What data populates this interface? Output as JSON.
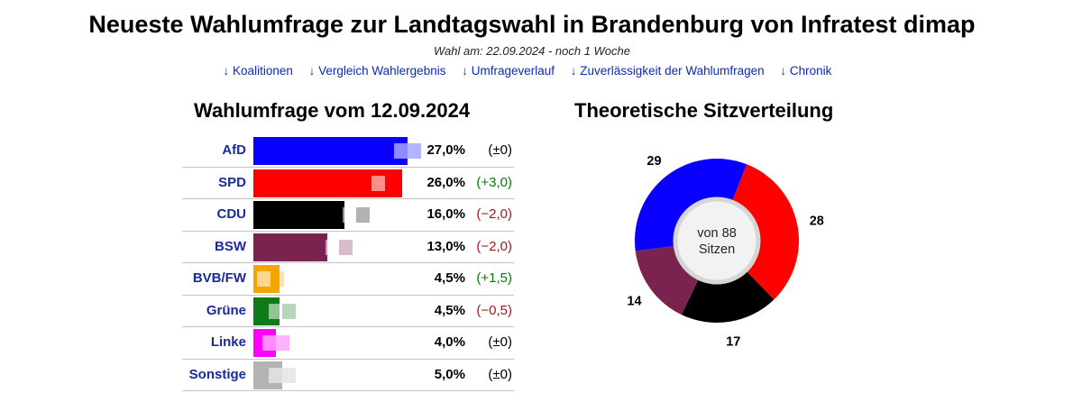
{
  "header": {
    "title": "Neueste Wahlumfrage zur Landtagswahl in Brandenburg von Infratest dimap",
    "subtitle": "Wahl am: 22.09.2024 - noch 1 Woche",
    "links": [
      "↓ Koalitionen",
      "↓ Vergleich Wahlergebnis",
      "↓ Umfrageverlauf",
      "↓ Zuverlässigkeit der Wahlumfragen",
      "↓ Chronik"
    ]
  },
  "poll_title": "Wahlumfrage vom 12.09.2024",
  "seats_title": "Theoretische Sitzverteilung",
  "seats_center": [
    "von 88",
    "Sitzen"
  ],
  "colors": {
    "AfD": "#0a00ff",
    "SPD": "#ff0000",
    "CDU": "#000000",
    "BSW": "#7a2250",
    "BVB/FW": "#f5a500",
    "Grüne": "#0f7a1a",
    "Linke": "#ff00ff",
    "Sonstige": "#b3b3b3"
  },
  "chart_data": [
    {
      "type": "bar",
      "orientation": "horizontal",
      "title": "Wahlumfrage vom 12.09.2024",
      "categories": [
        "AfD",
        "SPD",
        "CDU",
        "BSW",
        "BVB/FW",
        "Grüne",
        "Linke",
        "Sonstige"
      ],
      "values": [
        27.0,
        26.0,
        16.0,
        13.0,
        4.5,
        4.5,
        4.0,
        5.0
      ],
      "previous_values": [
        27.0,
        23.0,
        18.0,
        15.0,
        3.0,
        5.0,
        4.0,
        5.0
      ],
      "value_labels": [
        "27,0%",
        "26,0%",
        "16,0%",
        "13,0%",
        "4,5%",
        "4,5%",
        "4,0%",
        "5,0%"
      ],
      "change_labels": [
        "(±0)",
        "(+3,0)",
        "(−2,0)",
        "(−2,0)",
        "(+1,5)",
        "(−0,5)",
        "(±0)",
        "(±0)"
      ],
      "xlim": [
        0,
        30
      ]
    },
    {
      "type": "pie",
      "title": "Theoretische Sitzverteilung",
      "labels": [
        "AfD",
        "SPD",
        "CDU",
        "BSW"
      ],
      "values": [
        29,
        28,
        17,
        14
      ],
      "total": 88
    }
  ]
}
